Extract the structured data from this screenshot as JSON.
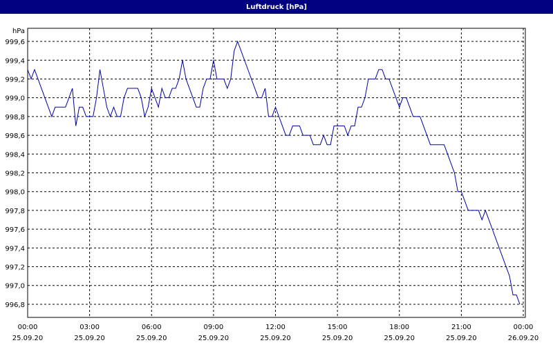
{
  "chart_data": {
    "type": "line",
    "title": "Luftdruck [hPa]",
    "ylabel": "hPa",
    "x": [
      0,
      10,
      20,
      30,
      40,
      50,
      60,
      70,
      80,
      90,
      100,
      110,
      120,
      130,
      140,
      150,
      160,
      170,
      180,
      190,
      200,
      210,
      220,
      230,
      240,
      250,
      260,
      270,
      280,
      290,
      300,
      310,
      320,
      330,
      340,
      350,
      360,
      370,
      380,
      390,
      400,
      410,
      420,
      430,
      440,
      450,
      460,
      470,
      480,
      490,
      500,
      510,
      520,
      530,
      540,
      550,
      560,
      570,
      580,
      590,
      600,
      610,
      620,
      630,
      640,
      650,
      660,
      670,
      680,
      690,
      700,
      710,
      720,
      730,
      740,
      750,
      760,
      770,
      780,
      790,
      800,
      810,
      820,
      830,
      840,
      850,
      860,
      870,
      880,
      890,
      900,
      910,
      920,
      930,
      940,
      950,
      960,
      970,
      980,
      990,
      1000,
      1010,
      1020,
      1030,
      1040,
      1050,
      1060,
      1070,
      1080,
      1090,
      1100,
      1110,
      1120,
      1130,
      1140,
      1150,
      1160,
      1170,
      1180,
      1190,
      1200,
      1210,
      1220,
      1230,
      1240,
      1250,
      1260,
      1270,
      1280,
      1290,
      1300,
      1310,
      1320,
      1330,
      1340,
      1350,
      1360,
      1370,
      1380,
      1390,
      1400,
      1410,
      1420,
      1430
    ],
    "series": [
      {
        "name": "Luftdruck",
        "color": "#0000a0",
        "values": [
          999.3,
          999.2,
          999.3,
          999.2,
          999.1,
          999.0,
          998.9,
          998.8,
          998.9,
          998.9,
          998.9,
          998.9,
          999.0,
          999.1,
          998.7,
          998.9,
          998.9,
          998.8,
          998.8,
          998.8,
          999.0,
          999.3,
          999.1,
          998.9,
          998.8,
          998.9,
          998.8,
          998.8,
          999.0,
          999.1,
          999.1,
          999.1,
          999.1,
          999.0,
          998.8,
          998.9,
          999.1,
          999.0,
          998.9,
          999.1,
          999.0,
          999.0,
          999.1,
          999.1,
          999.2,
          999.4,
          999.2,
          999.1,
          999.0,
          998.9,
          998.9,
          999.1,
          999.2,
          999.2,
          999.4,
          999.2,
          999.2,
          999.2,
          999.1,
          999.2,
          999.5,
          999.6,
          999.5,
          999.4,
          999.3,
          999.2,
          999.1,
          999.0,
          999.0,
          999.1,
          998.8,
          998.8,
          998.9,
          998.8,
          998.7,
          998.6,
          998.6,
          998.7,
          998.7,
          998.7,
          998.6,
          998.6,
          998.6,
          998.5,
          998.5,
          998.5,
          998.6,
          998.5,
          998.5,
          998.7,
          998.7,
          998.7,
          998.7,
          998.6,
          998.7,
          998.7,
          998.9,
          998.9,
          999.0,
          999.2,
          999.2,
          999.2,
          999.3,
          999.3,
          999.2,
          999.2,
          999.1,
          999.0,
          998.9,
          999.0,
          999.0,
          998.9,
          998.8,
          998.8,
          998.8,
          998.7,
          998.6,
          998.5,
          998.5,
          998.5,
          998.5,
          998.5,
          998.4,
          998.3,
          998.2,
          998.0,
          998.0,
          997.9,
          997.8,
          997.8,
          997.8,
          997.8,
          997.7,
          997.8,
          997.7,
          997.6,
          997.5,
          997.4,
          997.3,
          997.2,
          997.1,
          996.9,
          996.9,
          996.8
        ]
      }
    ],
    "xlim": [
      0,
      1446
    ],
    "xticks": [
      {
        "value": 0,
        "label": "00:00"
      },
      {
        "value": 180,
        "label": "03:00"
      },
      {
        "value": 360,
        "label": "06:00"
      },
      {
        "value": 540,
        "label": "09:00"
      },
      {
        "value": 720,
        "label": "12:00"
      },
      {
        "value": 900,
        "label": "15:00"
      },
      {
        "value": 1080,
        "label": "18:00"
      },
      {
        "value": 1260,
        "label": "21:00"
      },
      {
        "value": 1440,
        "label": "00:00"
      }
    ],
    "xtick_dates": [
      "25.09.20",
      "25.09.20",
      "25.09.20",
      "25.09.20",
      "25.09.20",
      "25.09.20",
      "25.09.20",
      "25.09.20",
      "26.09.20"
    ],
    "ylim": [
      996.66,
      999.74
    ],
    "yticks": [
      {
        "value": 996.8,
        "label": "996,8"
      },
      {
        "value": 997.0,
        "label": "997,0"
      },
      {
        "value": 997.2,
        "label": "997,2"
      },
      {
        "value": 997.4,
        "label": "997,4"
      },
      {
        "value": 997.6,
        "label": "997,6"
      },
      {
        "value": 997.8,
        "label": "997,8"
      },
      {
        "value": 998.0,
        "label": "998,0"
      },
      {
        "value": 998.2,
        "label": "998,2"
      },
      {
        "value": 998.4,
        "label": "998,4"
      },
      {
        "value": 998.6,
        "label": "998,6"
      },
      {
        "value": 998.8,
        "label": "998,8"
      },
      {
        "value": 999.0,
        "label": "999,0"
      },
      {
        "value": 999.2,
        "label": "999,2"
      },
      {
        "value": 999.4,
        "label": "999,4"
      },
      {
        "value": 999.6,
        "label": "999,6"
      }
    ],
    "grid": true
  }
}
